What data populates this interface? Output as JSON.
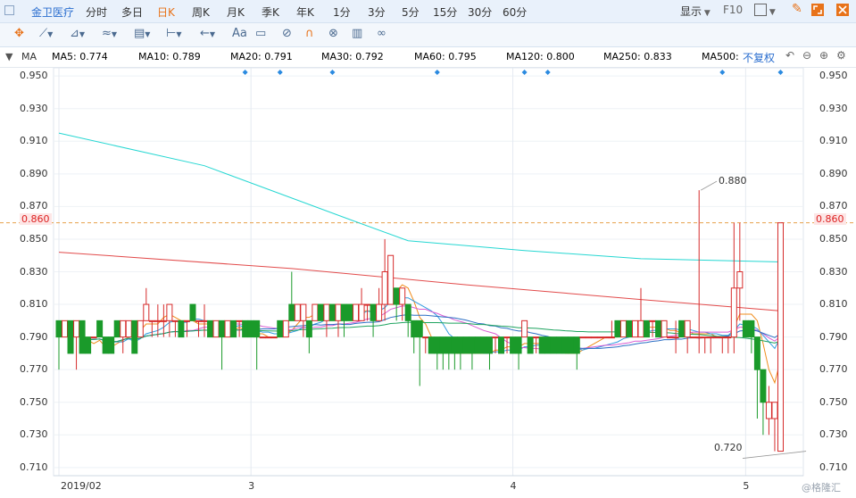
{
  "toolbar": {
    "stock_name": "金卫医疗",
    "timeframes": [
      "分时",
      "多日",
      "日K",
      "周K",
      "月K",
      "季K",
      "年K",
      "1分",
      "3分",
      "5分",
      "15分",
      "30分",
      "60分"
    ],
    "active_timeframe": "日K",
    "display_label": "显示",
    "f10_label": "F10"
  },
  "drawing_tools": {
    "text_tool_label": "Aa"
  },
  "indicator_bar": {
    "name": "MA",
    "items": [
      {
        "label": "MA5: 0.774",
        "color": "#f08c1c"
      },
      {
        "label": "MA10: 0.789",
        "color": "#2f9be0"
      },
      {
        "label": "MA20: 0.791",
        "color": "#d95cd2"
      },
      {
        "label": "MA30: 0.792",
        "color": "#2b6fc4"
      },
      {
        "label": "MA60: 0.795",
        "color": "#1ea35f"
      },
      {
        "label": "MA120: 0.800",
        "color": "#e24b4b"
      },
      {
        "label": "MA250: 0.833",
        "color": "#26d7d2"
      },
      {
        "label": "MA500:",
        "color": "#f5d5b0"
      }
    ],
    "adjust_label": "不复权"
  },
  "chart": {
    "price_labels": [
      "0.950",
      "0.930",
      "0.910",
      "0.890",
      "0.870",
      "0.850",
      "0.830",
      "0.810",
      "0.790",
      "0.770",
      "0.750",
      "0.730",
      "0.710"
    ],
    "current_price": "0.860",
    "date_labels": [
      "2019/02",
      "3",
      "4",
      "5"
    ],
    "high_annotation": "0.880",
    "low_annotation": "0.720",
    "watermark": "@格隆汇"
  },
  "chart_data": {
    "type": "candlestick",
    "ylim": [
      0.705,
      0.955
    ],
    "current_price": 0.86,
    "candles": [
      [
        0.8,
        0.79,
        0.8,
        0.77
      ],
      [
        0.79,
        0.8,
        0.8,
        0.79
      ],
      [
        0.8,
        0.78,
        0.8,
        0.78
      ],
      [
        0.79,
        0.8,
        0.8,
        0.77
      ],
      [
        0.8,
        0.78,
        0.8,
        0.78
      ],
      [
        0.79,
        0.78,
        0.79,
        0.78
      ],
      [
        0.79,
        0.79,
        0.79,
        0.79
      ],
      [
        0.8,
        0.79,
        0.8,
        0.79
      ],
      [
        0.79,
        0.78,
        0.79,
        0.78
      ],
      [
        0.79,
        0.78,
        0.79,
        0.78
      ],
      [
        0.8,
        0.79,
        0.8,
        0.79
      ],
      [
        0.79,
        0.8,
        0.8,
        0.78
      ],
      [
        0.79,
        0.8,
        0.8,
        0.79
      ],
      [
        0.8,
        0.78,
        0.8,
        0.78
      ],
      [
        0.79,
        0.8,
        0.8,
        0.79
      ],
      [
        0.8,
        0.81,
        0.82,
        0.8
      ],
      [
        0.8,
        0.8,
        0.8,
        0.79
      ],
      [
        0.8,
        0.8,
        0.81,
        0.79
      ],
      [
        0.8,
        0.8,
        0.81,
        0.79
      ],
      [
        0.8,
        0.81,
        0.81,
        0.79
      ],
      [
        0.8,
        0.8,
        0.8,
        0.79
      ],
      [
        0.8,
        0.79,
        0.8,
        0.79
      ],
      [
        0.8,
        0.8,
        0.8,
        0.79
      ],
      [
        0.81,
        0.8,
        0.81,
        0.8
      ],
      [
        0.8,
        0.8,
        0.8,
        0.79
      ],
      [
        0.8,
        0.8,
        0.81,
        0.79
      ],
      [
        0.8,
        0.79,
        0.8,
        0.79
      ],
      [
        0.79,
        0.8,
        0.8,
        0.79
      ],
      [
        0.8,
        0.79,
        0.8,
        0.77
      ],
      [
        0.79,
        0.8,
        0.8,
        0.79
      ],
      [
        0.8,
        0.79,
        0.8,
        0.79
      ],
      [
        0.8,
        0.8,
        0.8,
        0.79
      ],
      [
        0.8,
        0.79,
        0.8,
        0.79
      ],
      [
        0.8,
        0.79,
        0.8,
        0.79
      ],
      [
        0.8,
        0.79,
        0.8,
        0.77
      ],
      [
        0.79,
        0.79,
        0.79,
        0.79
      ],
      [
        0.79,
        0.79,
        0.79,
        0.79
      ],
      [
        0.79,
        0.79,
        0.79,
        0.79
      ],
      [
        0.8,
        0.79,
        0.8,
        0.79
      ],
      [
        0.79,
        0.8,
        0.8,
        0.79
      ],
      [
        0.81,
        0.8,
        0.83,
        0.8
      ],
      [
        0.8,
        0.81,
        0.81,
        0.8
      ],
      [
        0.8,
        0.81,
        0.81,
        0.79
      ],
      [
        0.8,
        0.79,
        0.8,
        0.78
      ],
      [
        0.8,
        0.81,
        0.81,
        0.8
      ],
      [
        0.81,
        0.8,
        0.81,
        0.8
      ],
      [
        0.8,
        0.81,
        0.81,
        0.79
      ],
      [
        0.81,
        0.8,
        0.81,
        0.8
      ],
      [
        0.8,
        0.81,
        0.81,
        0.79
      ],
      [
        0.81,
        0.8,
        0.81,
        0.79
      ],
      [
        0.81,
        0.8,
        0.81,
        0.8
      ],
      [
        0.8,
        0.81,
        0.81,
        0.8
      ],
      [
        0.8,
        0.81,
        0.82,
        0.8
      ],
      [
        0.81,
        0.81,
        0.81,
        0.8
      ],
      [
        0.81,
        0.8,
        0.81,
        0.79
      ],
      [
        0.8,
        0.81,
        0.82,
        0.8
      ],
      [
        0.81,
        0.83,
        0.85,
        0.8
      ],
      [
        0.81,
        0.84,
        0.84,
        0.81
      ],
      [
        0.82,
        0.81,
        0.82,
        0.8
      ],
      [
        0.81,
        0.82,
        0.82,
        0.8
      ],
      [
        0.81,
        0.8,
        0.81,
        0.79
      ],
      [
        0.8,
        0.79,
        0.8,
        0.78
      ],
      [
        0.8,
        0.79,
        0.8,
        0.76
      ],
      [
        0.79,
        0.79,
        0.79,
        0.78
      ],
      [
        0.79,
        0.78,
        0.79,
        0.78
      ],
      [
        0.79,
        0.78,
        0.79,
        0.77
      ],
      [
        0.79,
        0.78,
        0.79,
        0.77
      ],
      [
        0.79,
        0.78,
        0.79,
        0.77
      ],
      [
        0.79,
        0.78,
        0.79,
        0.77
      ],
      [
        0.79,
        0.78,
        0.79,
        0.77
      ],
      [
        0.79,
        0.78,
        0.79,
        0.78
      ],
      [
        0.79,
        0.78,
        0.79,
        0.77
      ],
      [
        0.79,
        0.78,
        0.79,
        0.78
      ],
      [
        0.79,
        0.78,
        0.79,
        0.78
      ],
      [
        0.79,
        0.78,
        0.79,
        0.77
      ],
      [
        0.79,
        0.79,
        0.79,
        0.78
      ],
      [
        0.79,
        0.78,
        0.79,
        0.78
      ],
      [
        0.79,
        0.79,
        0.79,
        0.78
      ],
      [
        0.79,
        0.78,
        0.79,
        0.78
      ],
      [
        0.79,
        0.78,
        0.79,
        0.77
      ],
      [
        0.79,
        0.8,
        0.8,
        0.79
      ],
      [
        0.79,
        0.78,
        0.79,
        0.78
      ],
      [
        0.79,
        0.79,
        0.79,
        0.78
      ],
      [
        0.79,
        0.78,
        0.79,
        0.78
      ],
      [
        0.79,
        0.78,
        0.79,
        0.78
      ],
      [
        0.79,
        0.78,
        0.79,
        0.78
      ],
      [
        0.79,
        0.78,
        0.79,
        0.78
      ],
      [
        0.79,
        0.78,
        0.79,
        0.78
      ],
      [
        0.79,
        0.78,
        0.79,
        0.78
      ],
      [
        0.79,
        0.78,
        0.79,
        0.77
      ],
      [
        0.79,
        0.79,
        0.79,
        0.79
      ],
      [
        0.79,
        0.79,
        0.79,
        0.79
      ],
      [
        0.79,
        0.79,
        0.79,
        0.79
      ],
      [
        0.79,
        0.79,
        0.79,
        0.79
      ],
      [
        0.79,
        0.79,
        0.79,
        0.79
      ],
      [
        0.79,
        0.79,
        0.8,
        0.79
      ],
      [
        0.8,
        0.79,
        0.8,
        0.79
      ],
      [
        0.79,
        0.8,
        0.8,
        0.79
      ],
      [
        0.8,
        0.79,
        0.8,
        0.79
      ],
      [
        0.79,
        0.8,
        0.8,
        0.79
      ],
      [
        0.79,
        0.8,
        0.82,
        0.79
      ],
      [
        0.8,
        0.79,
        0.8,
        0.79
      ],
      [
        0.8,
        0.8,
        0.8,
        0.79
      ],
      [
        0.8,
        0.79,
        0.8,
        0.79
      ],
      [
        0.79,
        0.8,
        0.8,
        0.79
      ],
      [
        0.79,
        0.79,
        0.79,
        0.79
      ],
      [
        0.79,
        0.79,
        0.8,
        0.78
      ],
      [
        0.8,
        0.79,
        0.8,
        0.79
      ],
      [
        0.79,
        0.8,
        0.8,
        0.78
      ],
      [
        0.79,
        0.79,
        0.79,
        0.79
      ],
      [
        0.79,
        0.79,
        0.88,
        0.78
      ],
      [
        0.79,
        0.79,
        0.79,
        0.78
      ],
      [
        0.79,
        0.79,
        0.79,
        0.78
      ],
      [
        0.79,
        0.79,
        0.79,
        0.79
      ],
      [
        0.79,
        0.79,
        0.79,
        0.78
      ],
      [
        0.79,
        0.79,
        0.79,
        0.78
      ],
      [
        0.79,
        0.82,
        0.86,
        0.78
      ],
      [
        0.82,
        0.83,
        0.86,
        0.8
      ],
      [
        0.8,
        0.79,
        0.8,
        0.79
      ],
      [
        0.8,
        0.79,
        0.8,
        0.78
      ],
      [
        0.79,
        0.77,
        0.79,
        0.74
      ],
      [
        0.77,
        0.75,
        0.77,
        0.73
      ],
      [
        0.74,
        0.75,
        0.76,
        0.73
      ],
      [
        0.74,
        0.75,
        0.75,
        0.72
      ],
      [
        0.72,
        0.86,
        0.86,
        0.72
      ]
    ],
    "ma_series": [
      {
        "name": "MA5",
        "color": "#f08c1c"
      },
      {
        "name": "MA10",
        "color": "#2f9be0"
      },
      {
        "name": "MA20",
        "color": "#d95cd2"
      },
      {
        "name": "MA30",
        "color": "#2b6fc4"
      },
      {
        "name": "MA60",
        "color": "#1ea35f"
      },
      {
        "name": "MA120",
        "color": "#e24b4b",
        "points": [
          [
            0,
            0.842
          ],
          [
            40,
            0.832
          ],
          [
            70,
            0.822
          ],
          [
            100,
            0.813
          ],
          [
            130,
            0.806
          ],
          [
            150,
            0.802
          ]
        ]
      },
      {
        "name": "MA250",
        "color": "#26d7d2",
        "points": [
          [
            0,
            0.915
          ],
          [
            25,
            0.895
          ],
          [
            50,
            0.862
          ],
          [
            60,
            0.849
          ],
          [
            80,
            0.843
          ],
          [
            100,
            0.838
          ],
          [
            130,
            0.836
          ],
          [
            150,
            0.833
          ]
        ]
      }
    ],
    "date_label_index": [
      0,
      33,
      78,
      118
    ]
  }
}
